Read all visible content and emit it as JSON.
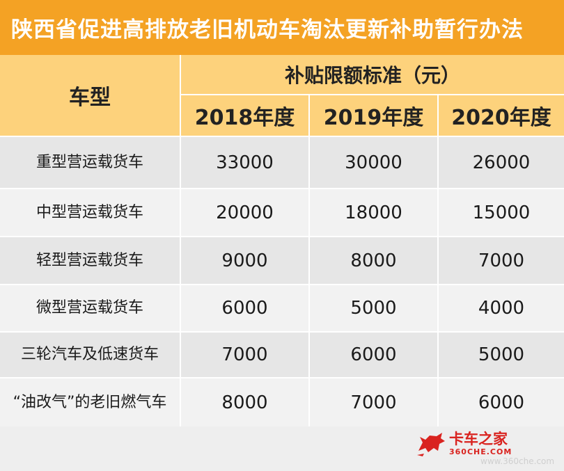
{
  "title": "陕西省促进高排放老旧机动车淘汰更新补助暂行办法",
  "header": {
    "vehicle_type": "车型",
    "standard": "补贴限额标准（元）",
    "years": [
      "2018年度",
      "2019年度",
      "2020年度"
    ]
  },
  "rows": [
    {
      "type": "重型营运载货车",
      "values": [
        "33000",
        "30000",
        "26000"
      ]
    },
    {
      "type": "中型营运载货车",
      "values": [
        "20000",
        "18000",
        "15000"
      ]
    },
    {
      "type": "轻型营运载货车",
      "values": [
        "9000",
        "8000",
        "7000"
      ]
    },
    {
      "type": "微型营运载货车",
      "values": [
        "6000",
        "5000",
        "4000"
      ]
    },
    {
      "type": "三轮汽车及低速货车",
      "values": [
        "7000",
        "6000",
        "5000"
      ]
    },
    {
      "type": "“油改气”的老旧燃气车",
      "values": [
        "8000",
        "7000",
        "6000"
      ]
    }
  ],
  "logo": {
    "cn": "卡车之家",
    "en": "360CHE.COM"
  },
  "watermark": "www.360che.com",
  "colors": {
    "title_bg": "#f4a224",
    "header_bg": "#fdd27c",
    "logo_red": "#d9231f"
  }
}
